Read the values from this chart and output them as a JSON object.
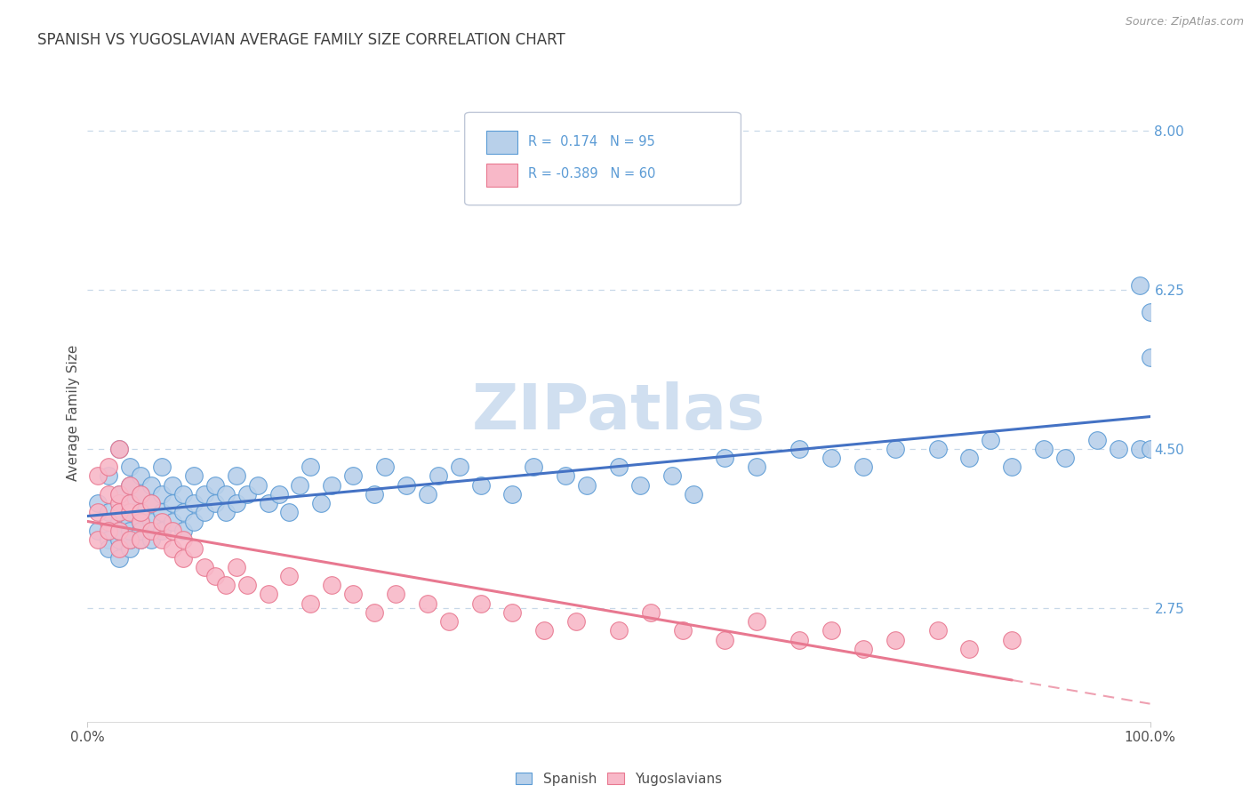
{
  "title": "SPANISH VS YUGOSLAVIAN AVERAGE FAMILY SIZE CORRELATION CHART",
  "source_text": "Source: ZipAtlas.com",
  "ylabel": "Average Family Size",
  "x_min": 0.0,
  "x_max": 1.0,
  "y_min": 1.5,
  "y_max": 8.3,
  "yticks": [
    2.75,
    4.5,
    6.25,
    8.0
  ],
  "xtick_labels": [
    "0.0%",
    "100.0%"
  ],
  "r1": 0.174,
  "n1": 95,
  "r2": -0.389,
  "n2": 60,
  "spanish_fill": "#b8d0ea",
  "spanish_edge": "#5b9bd5",
  "yugoslav_fill": "#f8b8c8",
  "yugoslav_edge": "#e87890",
  "blue_line_color": "#4472c4",
  "pink_line_color": "#e87890",
  "watermark_color": "#d0dff0",
  "title_color": "#404040",
  "axis_label_color": "#505050",
  "tick_color": "#5b9bd5",
  "grid_color": "#c8d8e8",
  "background_color": "#ffffff",
  "spanish_x": [
    0.01,
    0.01,
    0.02,
    0.02,
    0.02,
    0.02,
    0.03,
    0.03,
    0.03,
    0.03,
    0.03,
    0.03,
    0.04,
    0.04,
    0.04,
    0.04,
    0.04,
    0.04,
    0.04,
    0.04,
    0.05,
    0.05,
    0.05,
    0.05,
    0.05,
    0.05,
    0.06,
    0.06,
    0.06,
    0.06,
    0.07,
    0.07,
    0.07,
    0.07,
    0.08,
    0.08,
    0.08,
    0.09,
    0.09,
    0.09,
    0.1,
    0.1,
    0.1,
    0.11,
    0.11,
    0.12,
    0.12,
    0.13,
    0.13,
    0.14,
    0.14,
    0.15,
    0.16,
    0.17,
    0.18,
    0.19,
    0.2,
    0.21,
    0.22,
    0.23,
    0.25,
    0.27,
    0.28,
    0.3,
    0.32,
    0.33,
    0.35,
    0.37,
    0.4,
    0.42,
    0.45,
    0.47,
    0.5,
    0.52,
    0.55,
    0.57,
    0.6,
    0.63,
    0.67,
    0.7,
    0.73,
    0.76,
    0.8,
    0.83,
    0.85,
    0.87,
    0.9,
    0.92,
    0.95,
    0.97,
    0.99,
    0.99,
    1.0,
    1.0,
    1.0
  ],
  "spanish_y": [
    3.6,
    3.9,
    3.5,
    3.8,
    4.2,
    3.4,
    3.7,
    4.0,
    3.5,
    3.3,
    4.5,
    3.6,
    3.8,
    4.1,
    3.4,
    3.7,
    4.3,
    3.5,
    3.9,
    3.6,
    3.8,
    4.0,
    3.5,
    3.7,
    4.2,
    3.6,
    3.9,
    3.7,
    4.1,
    3.5,
    3.8,
    4.0,
    3.6,
    4.3,
    3.7,
    3.9,
    4.1,
    3.8,
    3.6,
    4.0,
    3.9,
    3.7,
    4.2,
    3.8,
    4.0,
    3.9,
    4.1,
    4.0,
    3.8,
    4.2,
    3.9,
    4.0,
    4.1,
    3.9,
    4.0,
    3.8,
    4.1,
    4.3,
    3.9,
    4.1,
    4.2,
    4.0,
    4.3,
    4.1,
    4.0,
    4.2,
    4.3,
    4.1,
    4.0,
    4.3,
    4.2,
    4.1,
    4.3,
    4.1,
    4.2,
    4.0,
    4.4,
    4.3,
    4.5,
    4.4,
    4.3,
    4.5,
    4.5,
    4.4,
    4.6,
    4.3,
    4.5,
    4.4,
    4.6,
    4.5,
    4.5,
    6.3,
    6.0,
    5.5,
    4.5
  ],
  "yugoslavian_x": [
    0.01,
    0.01,
    0.01,
    0.02,
    0.02,
    0.02,
    0.02,
    0.03,
    0.03,
    0.03,
    0.03,
    0.03,
    0.03,
    0.04,
    0.04,
    0.04,
    0.04,
    0.05,
    0.05,
    0.05,
    0.05,
    0.06,
    0.06,
    0.07,
    0.07,
    0.08,
    0.08,
    0.09,
    0.09,
    0.1,
    0.11,
    0.12,
    0.13,
    0.14,
    0.15,
    0.17,
    0.19,
    0.21,
    0.23,
    0.25,
    0.27,
    0.29,
    0.32,
    0.34,
    0.37,
    0.4,
    0.43,
    0.46,
    0.5,
    0.53,
    0.56,
    0.6,
    0.63,
    0.67,
    0.7,
    0.73,
    0.76,
    0.8,
    0.83,
    0.87
  ],
  "yugoslavian_y": [
    3.8,
    4.2,
    3.5,
    4.0,
    3.7,
    4.3,
    3.6,
    3.9,
    4.5,
    3.4,
    3.8,
    4.0,
    3.6,
    3.8,
    4.1,
    3.5,
    3.9,
    3.7,
    4.0,
    3.5,
    3.8,
    3.6,
    3.9,
    3.7,
    3.5,
    3.6,
    3.4,
    3.5,
    3.3,
    3.4,
    3.2,
    3.1,
    3.0,
    3.2,
    3.0,
    2.9,
    3.1,
    2.8,
    3.0,
    2.9,
    2.7,
    2.9,
    2.8,
    2.6,
    2.8,
    2.7,
    2.5,
    2.6,
    2.5,
    2.7,
    2.5,
    2.4,
    2.6,
    2.4,
    2.5,
    2.3,
    2.4,
    2.5,
    2.3,
    2.4
  ]
}
